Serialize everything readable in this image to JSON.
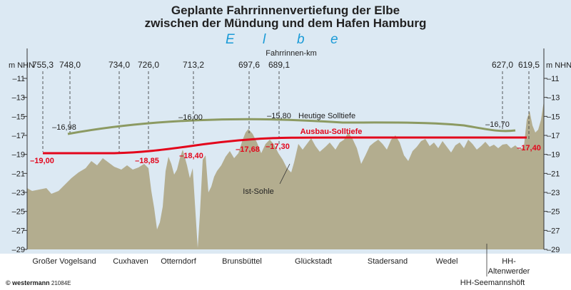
{
  "title": {
    "line1": "Geplante Fahrrinnenvertiefung der Elbe",
    "line2": "zwischen der Mündung und dem Hafen Hamburg"
  },
  "river_label": [
    "E",
    "l",
    "b",
    "e"
  ],
  "axis": {
    "unit_left": "m NHN",
    "unit_right": "m NHN",
    "ticks": [
      -11,
      -13,
      -15,
      -17,
      -19,
      -21,
      -23,
      -25,
      -27,
      -29
    ],
    "ylim": [
      -29,
      -9.5
    ],
    "tick_labels": [
      "–11",
      "–13",
      "–15",
      "–17",
      "–19",
      "–21",
      "–23",
      "–25",
      "–27",
      "–29"
    ]
  },
  "fahrrinnen_km": {
    "label": "Fahrrinnen-km",
    "markers": [
      "755,3",
      "748,0",
      "734,0",
      "726,0",
      "713,2",
      "697,6",
      "689,1",
      "627,0",
      "619,5"
    ]
  },
  "places": [
    "Großer Vogelsand",
    "Cuxhaven",
    "Otterndorf",
    "Brunsbüttel",
    "Glückstadt",
    "Stadersand",
    "Wedel",
    "HH-\nAltenwerder",
    "HH-Seemannshöft"
  ],
  "series": {
    "heutige": {
      "name": "Heutige Solltiefe",
      "color": "#8c9a62",
      "labels": [
        "–16,98",
        "–16,00",
        "–15,80",
        "–16,70"
      ]
    },
    "ausbau": {
      "name": "Ausbau-Solltiefe",
      "color": "#e3051b",
      "labels": [
        "–19,00",
        "–18,85",
        "–18,40",
        "–17,68",
        "–17,30",
        "–17,40"
      ]
    },
    "sohle": {
      "name": "Ist-Sohle",
      "color": "#b3ad8f"
    }
  },
  "footer": {
    "copyright": "© westermann",
    "code": "21084E"
  }
}
